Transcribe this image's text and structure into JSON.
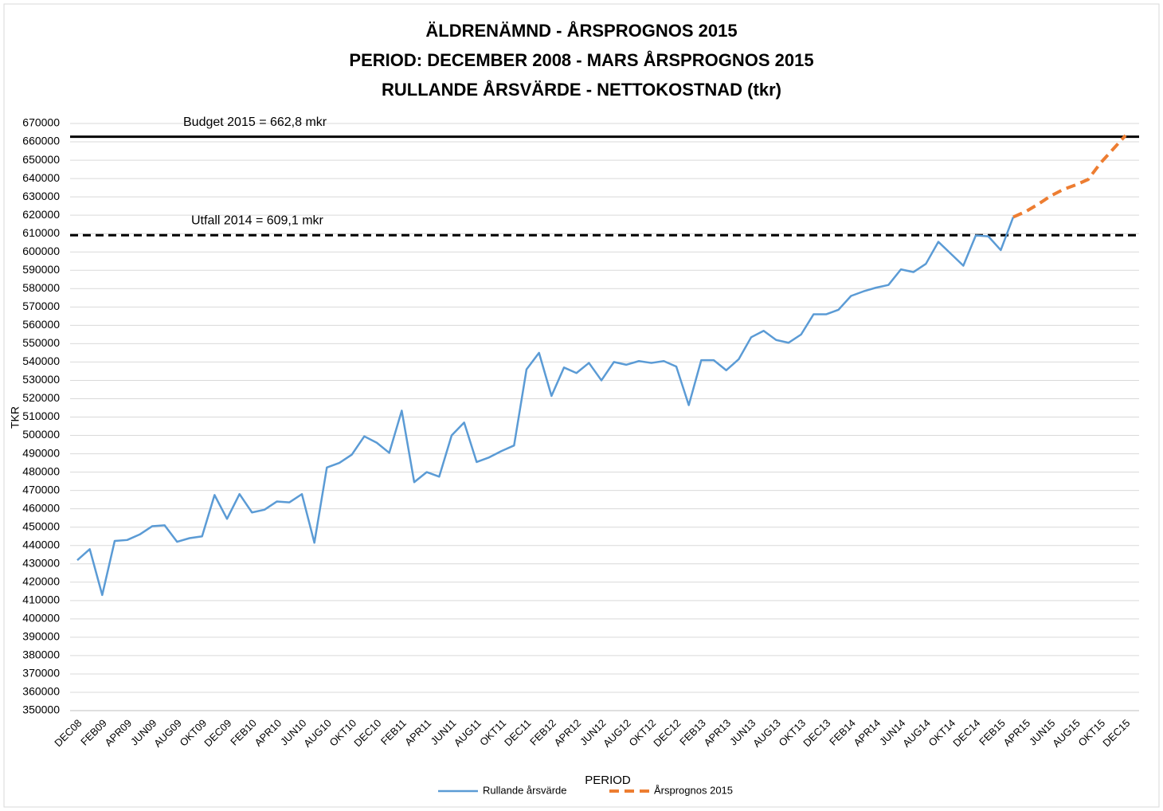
{
  "chart_data": {
    "type": "line",
    "title": [
      "ÄLDRENÄMND - ÅRSPROGNOS 2015",
      "PERIOD: DECEMBER 2008 - MARS ÅRSPROGNOS 2015",
      "RULLANDE ÅRSVÄRDE - NETTOKOSTNAD  (tkr)"
    ],
    "y_label": "TKR",
    "x_label": "PERIOD",
    "categories": [
      "DEC08",
      null,
      "FEB09",
      null,
      "APR09",
      null,
      "JUN09",
      null,
      "AUG09",
      null,
      "OKT09",
      null,
      "DEC09",
      null,
      "FEB10",
      null,
      "APR10",
      null,
      "JUN10",
      null,
      "AUG10",
      null,
      "OKT10",
      null,
      "DEC10",
      null,
      "FEB11",
      null,
      "APR11",
      null,
      "JUN11",
      null,
      "AUG11",
      null,
      "OKT11",
      null,
      "DEC11",
      null,
      "FEB12",
      null,
      "APR12",
      null,
      "JUN12",
      null,
      "AUG12",
      null,
      "OKT12",
      null,
      "DEC12",
      null,
      "FEB13",
      null,
      "APR13",
      null,
      "JUN13",
      null,
      "AUG13",
      null,
      "OKT13",
      null,
      "DEC13",
      null,
      "FEB14",
      null,
      "APR14",
      null,
      "JUN14",
      null,
      "AUG14",
      null,
      "OKT14",
      null,
      "DEC14",
      null,
      "FEB15",
      null,
      "APR15",
      null,
      "JUN15",
      null,
      "AUG15",
      null,
      "OKT15",
      null,
      "DEC15"
    ],
    "series": [
      {
        "name": "Rullande årsvärde",
        "color": "#5b9bd5",
        "dashed": false,
        "values": [
          432000,
          438000,
          413000,
          442500,
          443000,
          446000,
          450500,
          451000,
          442000,
          444000,
          445000,
          467500,
          454500,
          468000,
          458000,
          459500,
          464000,
          463500,
          468000,
          441500,
          482500,
          485000,
          489500,
          499500,
          496000,
          490500,
          513500,
          474500,
          480000,
          477500,
          500000,
          507000,
          485500,
          488000,
          491500,
          494500,
          536000,
          545000,
          521500,
          537000,
          534000,
          539500,
          530000,
          540000,
          538500,
          540500,
          539500,
          540500,
          537500,
          516500,
          541000,
          541000,
          535500,
          541500,
          553500,
          557000,
          552000,
          550500,
          555000,
          566000,
          566000,
          568500,
          576000,
          578500,
          580500,
          582000,
          590500,
          589000,
          593500,
          605500,
          599000,
          592500,
          609000,
          608500,
          601000,
          619000,
          null,
          null,
          null,
          null,
          null,
          null,
          null,
          null,
          null
        ]
      },
      {
        "name": "Årsprognos 2015",
        "color": "#ed7d31",
        "dashed": true,
        "values": [
          null,
          null,
          null,
          null,
          null,
          null,
          null,
          null,
          null,
          null,
          null,
          null,
          null,
          null,
          null,
          null,
          null,
          null,
          null,
          null,
          null,
          null,
          null,
          null,
          null,
          null,
          null,
          null,
          null,
          null,
          null,
          null,
          null,
          null,
          null,
          null,
          null,
          null,
          null,
          null,
          null,
          null,
          null,
          null,
          null,
          null,
          null,
          null,
          null,
          null,
          null,
          null,
          null,
          null,
          null,
          null,
          null,
          null,
          null,
          null,
          null,
          null,
          null,
          null,
          null,
          null,
          null,
          null,
          null,
          null,
          null,
          null,
          null,
          null,
          null,
          619000,
          622000,
          626000,
          630500,
          634000,
          636500,
          639500,
          648500,
          656000,
          663500
        ]
      }
    ],
    "reference_lines": [
      {
        "label": "Budget 2015 = 662,8 mkr",
        "value": 662800,
        "dashed": false,
        "color": "#000000"
      },
      {
        "label": "Utfall 2014 = 609,1 mkr",
        "value": 609100,
        "dashed": true,
        "color": "#000000"
      }
    ],
    "ylim": [
      350000,
      670000
    ],
    "yticks": [
      350000,
      360000,
      370000,
      380000,
      390000,
      400000,
      410000,
      420000,
      430000,
      440000,
      450000,
      460000,
      470000,
      480000,
      490000,
      500000,
      510000,
      520000,
      530000,
      540000,
      550000,
      560000,
      570000,
      580000,
      590000,
      600000,
      610000,
      620000,
      630000,
      640000,
      650000,
      660000,
      670000
    ],
    "grid": true,
    "legend": "bottom"
  }
}
